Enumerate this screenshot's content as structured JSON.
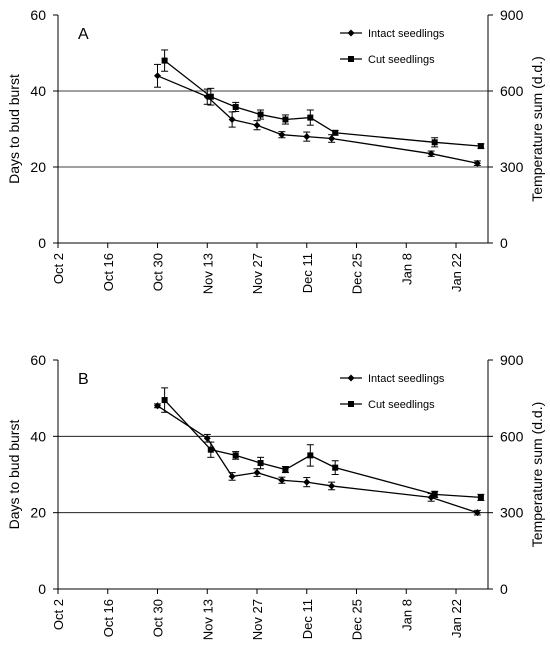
{
  "chart_data": [
    {
      "type": "line",
      "panel_label": "A",
      "ylabel": "Days to bud burst",
      "y2label": "Temperature sum (d.d.)",
      "ylim": [
        0,
        60
      ],
      "y2lim": [
        0,
        900
      ],
      "yticks": [
        "0",
        "20",
        "40",
        "60"
      ],
      "y2ticks": [
        "0",
        "300",
        "600",
        "900"
      ],
      "y_gridlines": [
        20,
        40
      ],
      "x_tick_labels": [
        "Oct 2",
        "Oct 16",
        "Oct 30",
        "Nov 13",
        "Nov 27",
        "Dec 11",
        "Dec 25",
        "Jan 8",
        "Jan 22"
      ],
      "x_domain": [
        "2008-10-02",
        "2009-01-31"
      ],
      "legend_position": "top-right",
      "series": [
        {
          "name": "Intact seedlings",
          "marker": "diamond",
          "points": [
            {
              "x": "2008-10-30",
              "y": 44.0,
              "err": 3.0
            },
            {
              "x": "2008-11-13",
              "y": 38.5,
              "err": 2.0
            },
            {
              "x": "2008-11-20",
              "y": 32.5,
              "err": 2.0
            },
            {
              "x": "2008-11-27",
              "y": 31.0,
              "err": 1.2
            },
            {
              "x": "2008-12-04",
              "y": 28.5,
              "err": 0.8
            },
            {
              "x": "2008-12-11",
              "y": 28.0,
              "err": 1.2
            },
            {
              "x": "2008-12-18",
              "y": 27.5,
              "err": 1.0
            },
            {
              "x": "2009-01-15",
              "y": 23.5,
              "err": 0.7
            },
            {
              "x": "2009-01-28",
              "y": 21.0,
              "err": 0.6
            }
          ]
        },
        {
          "name": "Cut seedlings",
          "marker": "square",
          "points": [
            {
              "x": "2008-11-01",
              "y": 48.0,
              "err": 2.8
            },
            {
              "x": "2008-11-14",
              "y": 38.5,
              "err": 2.2
            },
            {
              "x": "2008-11-21",
              "y": 35.8,
              "err": 1.2
            },
            {
              "x": "2008-11-28",
              "y": 33.8,
              "err": 1.2
            },
            {
              "x": "2008-12-05",
              "y": 32.5,
              "err": 1.2
            },
            {
              "x": "2008-12-12",
              "y": 33.0,
              "err": 2.0
            },
            {
              "x": "2008-12-19",
              "y": 29.0,
              "err": 0.6
            },
            {
              "x": "2009-01-16",
              "y": 26.5,
              "err": 1.2
            },
            {
              "x": "2009-01-29",
              "y": 25.5,
              "err": 0.6
            }
          ]
        }
      ]
    },
    {
      "type": "line",
      "panel_label": "B",
      "ylabel": "Days to bud burst",
      "y2label": "Temperature sum (d.d.)",
      "ylim": [
        0,
        60
      ],
      "y2lim": [
        0,
        900
      ],
      "yticks": [
        "0",
        "20",
        "40",
        "60"
      ],
      "y2ticks": [
        "0",
        "300",
        "600",
        "900"
      ],
      "y_gridlines": [
        20,
        40
      ],
      "x_tick_labels": [
        "Oct 2",
        "Oct 16",
        "Oct 30",
        "Nov 13",
        "Nov 27",
        "Dec 11",
        "Dec 25",
        "Jan 8",
        "Jan 22"
      ],
      "x_domain": [
        "2008-10-02",
        "2009-01-31"
      ],
      "legend_position": "top-right",
      "series": [
        {
          "name": "Intact seedlings",
          "marker": "diamond",
          "points": [
            {
              "x": "2008-10-30",
              "y": 48.0,
              "err": 0.5
            },
            {
              "x": "2008-11-13",
              "y": 39.5,
              "err": 1.0
            },
            {
              "x": "2008-11-20",
              "y": 29.5,
              "err": 1.0
            },
            {
              "x": "2008-11-27",
              "y": 30.5,
              "err": 1.0
            },
            {
              "x": "2008-12-04",
              "y": 28.5,
              "err": 0.8
            },
            {
              "x": "2008-12-11",
              "y": 28.0,
              "err": 1.2
            },
            {
              "x": "2008-12-18",
              "y": 27.0,
              "err": 1.0
            },
            {
              "x": "2009-01-15",
              "y": 24.0,
              "err": 1.0
            },
            {
              "x": "2009-01-28",
              "y": 20.0,
              "err": 0.6
            }
          ]
        },
        {
          "name": "Cut seedlings",
          "marker": "square",
          "points": [
            {
              "x": "2008-11-01",
              "y": 49.5,
              "err": 3.2
            },
            {
              "x": "2008-11-14",
              "y": 36.5,
              "err": 2.0
            },
            {
              "x": "2008-11-21",
              "y": 35.0,
              "err": 1.0
            },
            {
              "x": "2008-11-28",
              "y": 33.0,
              "err": 1.5
            },
            {
              "x": "2008-12-05",
              "y": 31.3,
              "err": 0.8
            },
            {
              "x": "2008-12-12",
              "y": 35.0,
              "err": 2.8
            },
            {
              "x": "2008-12-19",
              "y": 31.8,
              "err": 1.8
            },
            {
              "x": "2009-01-16",
              "y": 24.8,
              "err": 0.8
            },
            {
              "x": "2009-01-29",
              "y": 24.0,
              "err": 0.8
            }
          ]
        }
      ]
    }
  ]
}
